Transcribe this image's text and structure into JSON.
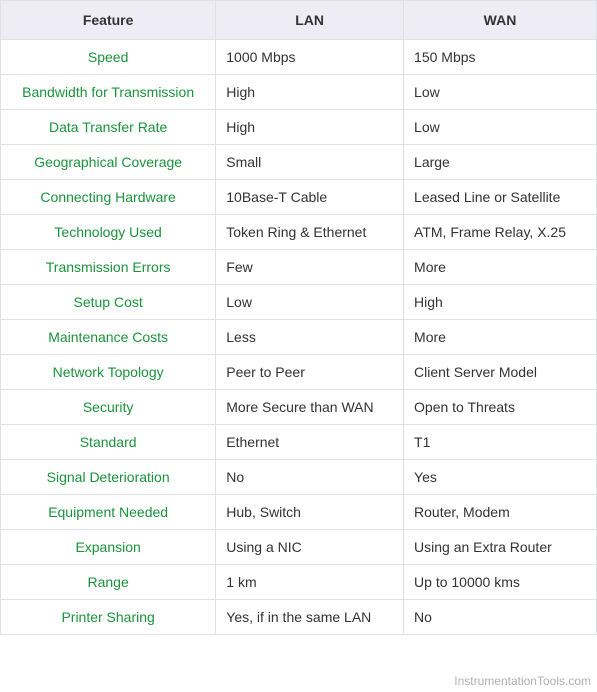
{
  "table": {
    "header_background": "#eeedf7",
    "header_text_color": "#333333",
    "border_color": "#dee2e6",
    "feature_color": "#1b933c",
    "value_color": "#333333",
    "font_size": 14,
    "columns": [
      "Feature",
      "LAN",
      "WAN"
    ],
    "rows": [
      {
        "feature": "Speed",
        "lan": "1000 Mbps",
        "wan": "150 Mbps"
      },
      {
        "feature": "Bandwidth for Transmission",
        "lan": "High",
        "wan": "Low"
      },
      {
        "feature": "Data Transfer Rate",
        "lan": "High",
        "wan": "Low"
      },
      {
        "feature": "Geographical Coverage",
        "lan": "Small",
        "wan": "Large"
      },
      {
        "feature": "Connecting Hardware",
        "lan": "10Base-T Cable",
        "wan": "Leased Line or Satellite"
      },
      {
        "feature": "Technology Used",
        "lan": "Token Ring & Ethernet",
        "wan": "ATM, Frame Relay, X.25"
      },
      {
        "feature": "Transmission Errors",
        "lan": "Few",
        "wan": "More"
      },
      {
        "feature": "Setup Cost",
        "lan": "Low",
        "wan": "High"
      },
      {
        "feature": "Maintenance Costs",
        "lan": "Less",
        "wan": "More"
      },
      {
        "feature": "Network Topology",
        "lan": "Peer to Peer",
        "wan": "Client Server Model"
      },
      {
        "feature": "Security",
        "lan": "More Secure than WAN",
        "wan": "Open to Threats"
      },
      {
        "feature": "Standard",
        "lan": "Ethernet",
        "wan": "T1"
      },
      {
        "feature": "Signal Deterioration",
        "lan": "No",
        "wan": "Yes"
      },
      {
        "feature": "Equipment Needed",
        "lan": "Hub, Switch",
        "wan": "Router, Modem"
      },
      {
        "feature": "Expansion",
        "lan": "Using a NIC",
        "wan": "Using an Extra Router"
      },
      {
        "feature": "Range",
        "lan": "1 km",
        "wan": "Up to 10000 kms"
      },
      {
        "feature": "Printer Sharing",
        "lan": "Yes, if in the same LAN",
        "wan": "No"
      }
    ]
  },
  "watermark": "InstrumentationTools.com"
}
